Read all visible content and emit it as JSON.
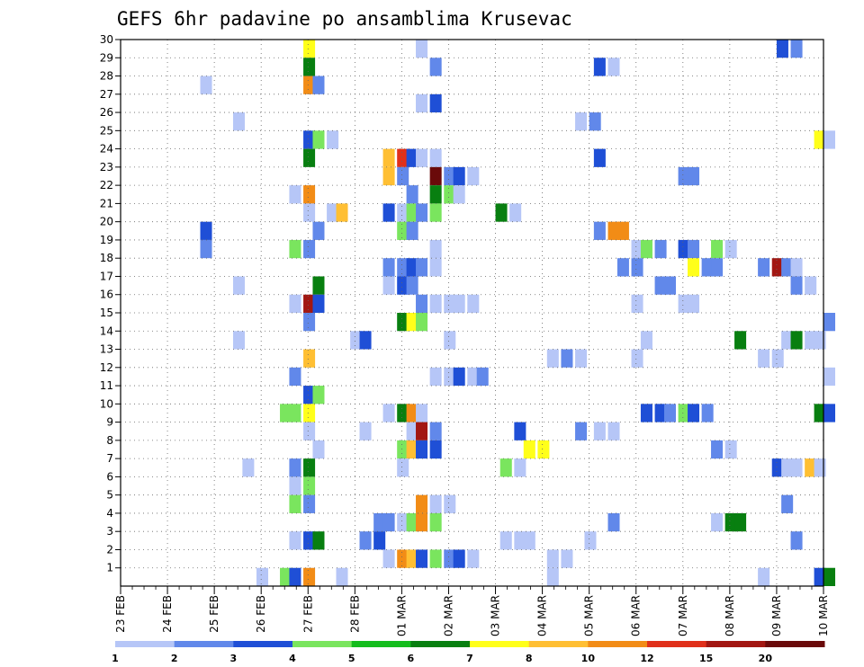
{
  "chart_data": {
    "type": "heatmap",
    "title": "GEFS 6hr padavine po ansamblima Krusevac",
    "xlabel": "",
    "ylabel": "",
    "x_tick_labels": [
      "23 FEB",
      "24 FEB",
      "25 FEB",
      "26 FEB",
      "27 FEB",
      "28 FEB",
      "01 MAR",
      "02 MAR",
      "03 MAR",
      "04 MAR",
      "05 MAR",
      "06 MAR",
      "07 MAR",
      "08 MAR",
      "09 MAR",
      "10 MAR"
    ],
    "x_range_days": [
      0,
      15
    ],
    "y_tick_labels": [
      1,
      2,
      3,
      4,
      5,
      6,
      7,
      8,
      9,
      10,
      11,
      12,
      13,
      14,
      15,
      16,
      17,
      18,
      19,
      20,
      21,
      22,
      23,
      24,
      25,
      26,
      27,
      28,
      29,
      30
    ],
    "y_range": [
      0,
      30
    ],
    "grid": true,
    "colorbar": {
      "placement": "bottom",
      "tick_labels": [
        "1",
        "2",
        "3",
        "4",
        "5",
        "6",
        "7",
        "8",
        "10",
        "12",
        "15",
        "20"
      ],
      "bounds": [
        1,
        2,
        3,
        4,
        5,
        6,
        7,
        8,
        10,
        12,
        15,
        20,
        30
      ],
      "colors": [
        "#b6c6f7",
        "#6188ea",
        "#1f4fd6",
        "#7ae55e",
        "#14bd1d",
        "#087f10",
        "#ffff1a",
        "#ffbf33",
        "#f28c16",
        "#e0301a",
        "#a21712",
        "#6a0a0a"
      ]
    },
    "cells": [
      {
        "member": 30,
        "t": 3.9,
        "v": 7
      },
      {
        "member": 30,
        "t": 6.3,
        "v": 1
      },
      {
        "member": 30,
        "t": 14.0,
        "v": 3
      },
      {
        "member": 30,
        "t": 14.3,
        "v": 2
      },
      {
        "member": 29,
        "t": 3.9,
        "v": 6
      },
      {
        "member": 29,
        "t": 6.6,
        "v": 2
      },
      {
        "member": 29,
        "t": 10.1,
        "v": 3
      },
      {
        "member": 29,
        "t": 10.4,
        "v": 1
      },
      {
        "member": 28,
        "t": 1.7,
        "v": 1
      },
      {
        "member": 28,
        "t": 3.9,
        "v": 10
      },
      {
        "member": 28,
        "t": 4.1,
        "v": 2
      },
      {
        "member": 27,
        "t": 6.3,
        "v": 1
      },
      {
        "member": 27,
        "t": 6.6,
        "v": 3
      },
      {
        "member": 26,
        "t": 2.4,
        "v": 1
      },
      {
        "member": 26,
        "t": 9.7,
        "v": 1
      },
      {
        "member": 26,
        "t": 10.0,
        "v": 2
      },
      {
        "member": 25,
        "t": 3.9,
        "v": 3
      },
      {
        "member": 25,
        "t": 4.1,
        "v": 4
      },
      {
        "member": 25,
        "t": 4.4,
        "v": 1
      },
      {
        "member": 25,
        "t": 14.8,
        "v": 7
      },
      {
        "member": 25,
        "t": 15.0,
        "v": 1
      },
      {
        "member": 24,
        "t": 3.9,
        "v": 6
      },
      {
        "member": 24,
        "t": 5.6,
        "v": 8
      },
      {
        "member": 24,
        "t": 5.9,
        "v": 12
      },
      {
        "member": 24,
        "t": 6.1,
        "v": 3
      },
      {
        "member": 24,
        "t": 6.3,
        "v": 1
      },
      {
        "member": 24,
        "t": 6.6,
        "v": 1
      },
      {
        "member": 24,
        "t": 10.1,
        "v": 3
      },
      {
        "member": 23,
        "t": 5.6,
        "v": 8
      },
      {
        "member": 23,
        "t": 5.9,
        "v": 2
      },
      {
        "member": 23,
        "t": 6.6,
        "v": 20
      },
      {
        "member": 23,
        "t": 6.9,
        "v": 2
      },
      {
        "member": 23,
        "t": 7.1,
        "v": 3
      },
      {
        "member": 23,
        "t": 7.4,
        "v": 1
      },
      {
        "member": 23,
        "t": 11.9,
        "v": 2
      },
      {
        "member": 23,
        "t": 12.1,
        "v": 2
      },
      {
        "member": 22,
        "t": 3.6,
        "v": 1
      },
      {
        "member": 22,
        "t": 3.9,
        "v": 10
      },
      {
        "member": 22,
        "t": 6.1,
        "v": 2
      },
      {
        "member": 22,
        "t": 6.6,
        "v": 6
      },
      {
        "member": 22,
        "t": 6.9,
        "v": 4
      },
      {
        "member": 22,
        "t": 7.1,
        "v": 1
      },
      {
        "member": 21,
        "t": 3.9,
        "v": 1
      },
      {
        "member": 21,
        "t": 4.4,
        "v": 1
      },
      {
        "member": 21,
        "t": 4.6,
        "v": 8
      },
      {
        "member": 21,
        "t": 5.6,
        "v": 3
      },
      {
        "member": 21,
        "t": 5.9,
        "v": 1
      },
      {
        "member": 21,
        "t": 6.1,
        "v": 4
      },
      {
        "member": 21,
        "t": 6.3,
        "v": 2
      },
      {
        "member": 21,
        "t": 6.6,
        "v": 4
      },
      {
        "member": 21,
        "t": 8.0,
        "v": 6
      },
      {
        "member": 21,
        "t": 8.3,
        "v": 1
      },
      {
        "member": 20,
        "t": 1.7,
        "v": 3
      },
      {
        "member": 20,
        "t": 4.1,
        "v": 2
      },
      {
        "member": 20,
        "t": 5.9,
        "v": 4
      },
      {
        "member": 20,
        "t": 6.1,
        "v": 2
      },
      {
        "member": 20,
        "t": 10.1,
        "v": 2
      },
      {
        "member": 20,
        "t": 10.4,
        "v": 10
      },
      {
        "member": 20,
        "t": 10.6,
        "v": 10
      },
      {
        "member": 19,
        "t": 1.7,
        "v": 2
      },
      {
        "member": 19,
        "t": 3.6,
        "v": 4
      },
      {
        "member": 19,
        "t": 3.9,
        "v": 2
      },
      {
        "member": 19,
        "t": 6.6,
        "v": 1
      },
      {
        "member": 19,
        "t": 10.9,
        "v": 1
      },
      {
        "member": 19,
        "t": 11.1,
        "v": 4
      },
      {
        "member": 19,
        "t": 11.4,
        "v": 2
      },
      {
        "member": 19,
        "t": 11.9,
        "v": 3
      },
      {
        "member": 19,
        "t": 12.1,
        "v": 2
      },
      {
        "member": 19,
        "t": 12.6,
        "v": 4
      },
      {
        "member": 19,
        "t": 12.9,
        "v": 1
      },
      {
        "member": 18,
        "t": 5.6,
        "v": 2
      },
      {
        "member": 18,
        "t": 5.9,
        "v": 2
      },
      {
        "member": 18,
        "t": 6.1,
        "v": 3
      },
      {
        "member": 18,
        "t": 6.3,
        "v": 2
      },
      {
        "member": 18,
        "t": 6.6,
        "v": 1
      },
      {
        "member": 18,
        "t": 10.6,
        "v": 2
      },
      {
        "member": 18,
        "t": 10.9,
        "v": 2
      },
      {
        "member": 18,
        "t": 12.1,
        "v": 7
      },
      {
        "member": 18,
        "t": 12.4,
        "v": 2
      },
      {
        "member": 18,
        "t": 12.6,
        "v": 2
      },
      {
        "member": 18,
        "t": 13.6,
        "v": 2
      },
      {
        "member": 18,
        "t": 13.9,
        "v": 15
      },
      {
        "member": 18,
        "t": 14.1,
        "v": 2
      },
      {
        "member": 18,
        "t": 14.3,
        "v": 1
      },
      {
        "member": 17,
        "t": 2.4,
        "v": 1
      },
      {
        "member": 17,
        "t": 4.1,
        "v": 6
      },
      {
        "member": 17,
        "t": 5.6,
        "v": 1
      },
      {
        "member": 17,
        "t": 5.9,
        "v": 3
      },
      {
        "member": 17,
        "t": 6.1,
        "v": 2
      },
      {
        "member": 17,
        "t": 11.4,
        "v": 2
      },
      {
        "member": 17,
        "t": 11.6,
        "v": 2
      },
      {
        "member": 17,
        "t": 14.3,
        "v": 2
      },
      {
        "member": 17,
        "t": 14.6,
        "v": 1
      },
      {
        "member": 16,
        "t": 3.6,
        "v": 1
      },
      {
        "member": 16,
        "t": 3.9,
        "v": 15
      },
      {
        "member": 16,
        "t": 4.1,
        "v": 3
      },
      {
        "member": 16,
        "t": 6.3,
        "v": 2
      },
      {
        "member": 16,
        "t": 6.6,
        "v": 1
      },
      {
        "member": 16,
        "t": 6.9,
        "v": 1
      },
      {
        "member": 16,
        "t": 7.1,
        "v": 1
      },
      {
        "member": 16,
        "t": 7.4,
        "v": 1
      },
      {
        "member": 16,
        "t": 10.9,
        "v": 1
      },
      {
        "member": 16,
        "t": 11.9,
        "v": 1
      },
      {
        "member": 16,
        "t": 12.1,
        "v": 1
      },
      {
        "member": 15,
        "t": 3.9,
        "v": 2
      },
      {
        "member": 15,
        "t": 5.9,
        "v": 6
      },
      {
        "member": 15,
        "t": 6.1,
        "v": 7
      },
      {
        "member": 15,
        "t": 6.3,
        "v": 4
      },
      {
        "member": 15,
        "t": 15.0,
        "v": 2
      },
      {
        "member": 14,
        "t": 2.4,
        "v": 1
      },
      {
        "member": 14,
        "t": 4.9,
        "v": 1
      },
      {
        "member": 14,
        "t": 5.1,
        "v": 3
      },
      {
        "member": 14,
        "t": 6.9,
        "v": 1
      },
      {
        "member": 14,
        "t": 11.1,
        "v": 1
      },
      {
        "member": 14,
        "t": 13.1,
        "v": 6
      },
      {
        "member": 14,
        "t": 14.1,
        "v": 1
      },
      {
        "member": 14,
        "t": 14.3,
        "v": 6
      },
      {
        "member": 14,
        "t": 14.6,
        "v": 1
      },
      {
        "member": 14,
        "t": 14.8,
        "v": 1
      },
      {
        "member": 13,
        "t": 3.9,
        "v": 8
      },
      {
        "member": 13,
        "t": 9.1,
        "v": 1
      },
      {
        "member": 13,
        "t": 9.4,
        "v": 2
      },
      {
        "member": 13,
        "t": 9.7,
        "v": 1
      },
      {
        "member": 13,
        "t": 10.9,
        "v": 1
      },
      {
        "member": 13,
        "t": 13.6,
        "v": 1
      },
      {
        "member": 13,
        "t": 13.9,
        "v": 1
      },
      {
        "member": 12,
        "t": 3.6,
        "v": 2
      },
      {
        "member": 12,
        "t": 6.6,
        "v": 1
      },
      {
        "member": 12,
        "t": 6.9,
        "v": 1
      },
      {
        "member": 12,
        "t": 7.1,
        "v": 3
      },
      {
        "member": 12,
        "t": 7.4,
        "v": 1
      },
      {
        "member": 12,
        "t": 7.6,
        "v": 2
      },
      {
        "member": 12,
        "t": 15.0,
        "v": 1
      },
      {
        "member": 11,
        "t": 3.9,
        "v": 3
      },
      {
        "member": 11,
        "t": 4.1,
        "v": 4
      },
      {
        "member": 10,
        "t": 3.4,
        "v": 4
      },
      {
        "member": 10,
        "t": 3.6,
        "v": 4
      },
      {
        "member": 10,
        "t": 3.9,
        "v": 7
      },
      {
        "member": 10,
        "t": 5.6,
        "v": 1
      },
      {
        "member": 10,
        "t": 5.9,
        "v": 6
      },
      {
        "member": 10,
        "t": 6.1,
        "v": 10
      },
      {
        "member": 10,
        "t": 6.3,
        "v": 1
      },
      {
        "member": 10,
        "t": 11.1,
        "v": 3
      },
      {
        "member": 10,
        "t": 11.4,
        "v": 3
      },
      {
        "member": 10,
        "t": 11.6,
        "v": 2
      },
      {
        "member": 10,
        "t": 11.9,
        "v": 4
      },
      {
        "member": 10,
        "t": 12.1,
        "v": 3
      },
      {
        "member": 10,
        "t": 12.4,
        "v": 2
      },
      {
        "member": 10,
        "t": 14.8,
        "v": 6
      },
      {
        "member": 10,
        "t": 15.0,
        "v": 3
      },
      {
        "member": 9,
        "t": 3.9,
        "v": 1
      },
      {
        "member": 9,
        "t": 5.1,
        "v": 1
      },
      {
        "member": 9,
        "t": 6.1,
        "v": 1
      },
      {
        "member": 9,
        "t": 6.3,
        "v": 15
      },
      {
        "member": 9,
        "t": 6.6,
        "v": 2
      },
      {
        "member": 9,
        "t": 8.4,
        "v": 3
      },
      {
        "member": 9,
        "t": 9.7,
        "v": 2
      },
      {
        "member": 9,
        "t": 10.1,
        "v": 1
      },
      {
        "member": 9,
        "t": 10.4,
        "v": 1
      },
      {
        "member": 8,
        "t": 4.1,
        "v": 1
      },
      {
        "member": 8,
        "t": 5.9,
        "v": 4
      },
      {
        "member": 8,
        "t": 6.1,
        "v": 8
      },
      {
        "member": 8,
        "t": 6.3,
        "v": 3
      },
      {
        "member": 8,
        "t": 6.6,
        "v": 3
      },
      {
        "member": 8,
        "t": 8.6,
        "v": 7
      },
      {
        "member": 8,
        "t": 8.9,
        "v": 7
      },
      {
        "member": 8,
        "t": 12.6,
        "v": 2
      },
      {
        "member": 8,
        "t": 12.9,
        "v": 1
      },
      {
        "member": 7,
        "t": 2.6,
        "v": 1
      },
      {
        "member": 7,
        "t": 3.6,
        "v": 2
      },
      {
        "member": 7,
        "t": 3.9,
        "v": 6
      },
      {
        "member": 7,
        "t": 5.9,
        "v": 1
      },
      {
        "member": 7,
        "t": 8.1,
        "v": 4
      },
      {
        "member": 7,
        "t": 8.4,
        "v": 1
      },
      {
        "member": 7,
        "t": 13.9,
        "v": 3
      },
      {
        "member": 7,
        "t": 14.1,
        "v": 1
      },
      {
        "member": 7,
        "t": 14.3,
        "v": 1
      },
      {
        "member": 7,
        "t": 14.6,
        "v": 8
      },
      {
        "member": 7,
        "t": 14.8,
        "v": 1
      },
      {
        "member": 6,
        "t": 3.6,
        "v": 1
      },
      {
        "member": 6,
        "t": 3.9,
        "v": 4
      },
      {
        "member": 5,
        "t": 3.6,
        "v": 4
      },
      {
        "member": 5,
        "t": 3.9,
        "v": 2
      },
      {
        "member": 5,
        "t": 6.3,
        "v": 10
      },
      {
        "member": 5,
        "t": 6.6,
        "v": 1
      },
      {
        "member": 5,
        "t": 6.9,
        "v": 1
      },
      {
        "member": 5,
        "t": 14.1,
        "v": 2
      },
      {
        "member": 4,
        "t": 5.4,
        "v": 2
      },
      {
        "member": 4,
        "t": 5.6,
        "v": 2
      },
      {
        "member": 4,
        "t": 5.9,
        "v": 1
      },
      {
        "member": 4,
        "t": 6.1,
        "v": 4
      },
      {
        "member": 4,
        "t": 6.3,
        "v": 10
      },
      {
        "member": 4,
        "t": 6.6,
        "v": 4
      },
      {
        "member": 4,
        "t": 10.4,
        "v": 2
      },
      {
        "member": 4,
        "t": 12.6,
        "v": 1
      },
      {
        "member": 4,
        "t": 12.9,
        "v": 6
      },
      {
        "member": 4,
        "t": 13.1,
        "v": 6
      },
      {
        "member": 3,
        "t": 3.6,
        "v": 1
      },
      {
        "member": 3,
        "t": 3.9,
        "v": 3
      },
      {
        "member": 3,
        "t": 4.1,
        "v": 6
      },
      {
        "member": 3,
        "t": 5.1,
        "v": 2
      },
      {
        "member": 3,
        "t": 5.4,
        "v": 3
      },
      {
        "member": 3,
        "t": 8.1,
        "v": 1
      },
      {
        "member": 3,
        "t": 8.4,
        "v": 1
      },
      {
        "member": 3,
        "t": 8.6,
        "v": 1
      },
      {
        "member": 3,
        "t": 9.9,
        "v": 1
      },
      {
        "member": 3,
        "t": 14.3,
        "v": 2
      },
      {
        "member": 2,
        "t": 5.6,
        "v": 1
      },
      {
        "member": 2,
        "t": 5.9,
        "v": 10
      },
      {
        "member": 2,
        "t": 6.1,
        "v": 8
      },
      {
        "member": 2,
        "t": 6.3,
        "v": 3
      },
      {
        "member": 2,
        "t": 6.6,
        "v": 4
      },
      {
        "member": 2,
        "t": 6.9,
        "v": 2
      },
      {
        "member": 2,
        "t": 7.1,
        "v": 3
      },
      {
        "member": 2,
        "t": 7.4,
        "v": 1
      },
      {
        "member": 2,
        "t": 9.1,
        "v": 1
      },
      {
        "member": 2,
        "t": 9.4,
        "v": 1
      },
      {
        "member": 1,
        "t": 2.9,
        "v": 1
      },
      {
        "member": 1,
        "t": 3.4,
        "v": 4
      },
      {
        "member": 1,
        "t": 3.6,
        "v": 3
      },
      {
        "member": 1,
        "t": 3.9,
        "v": 10
      },
      {
        "member": 1,
        "t": 4.6,
        "v": 1
      },
      {
        "member": 1,
        "t": 9.1,
        "v": 1
      },
      {
        "member": 1,
        "t": 13.6,
        "v": 1
      },
      {
        "member": 1,
        "t": 14.8,
        "v": 3
      },
      {
        "member": 1,
        "t": 15.0,
        "v": 6
      }
    ]
  }
}
